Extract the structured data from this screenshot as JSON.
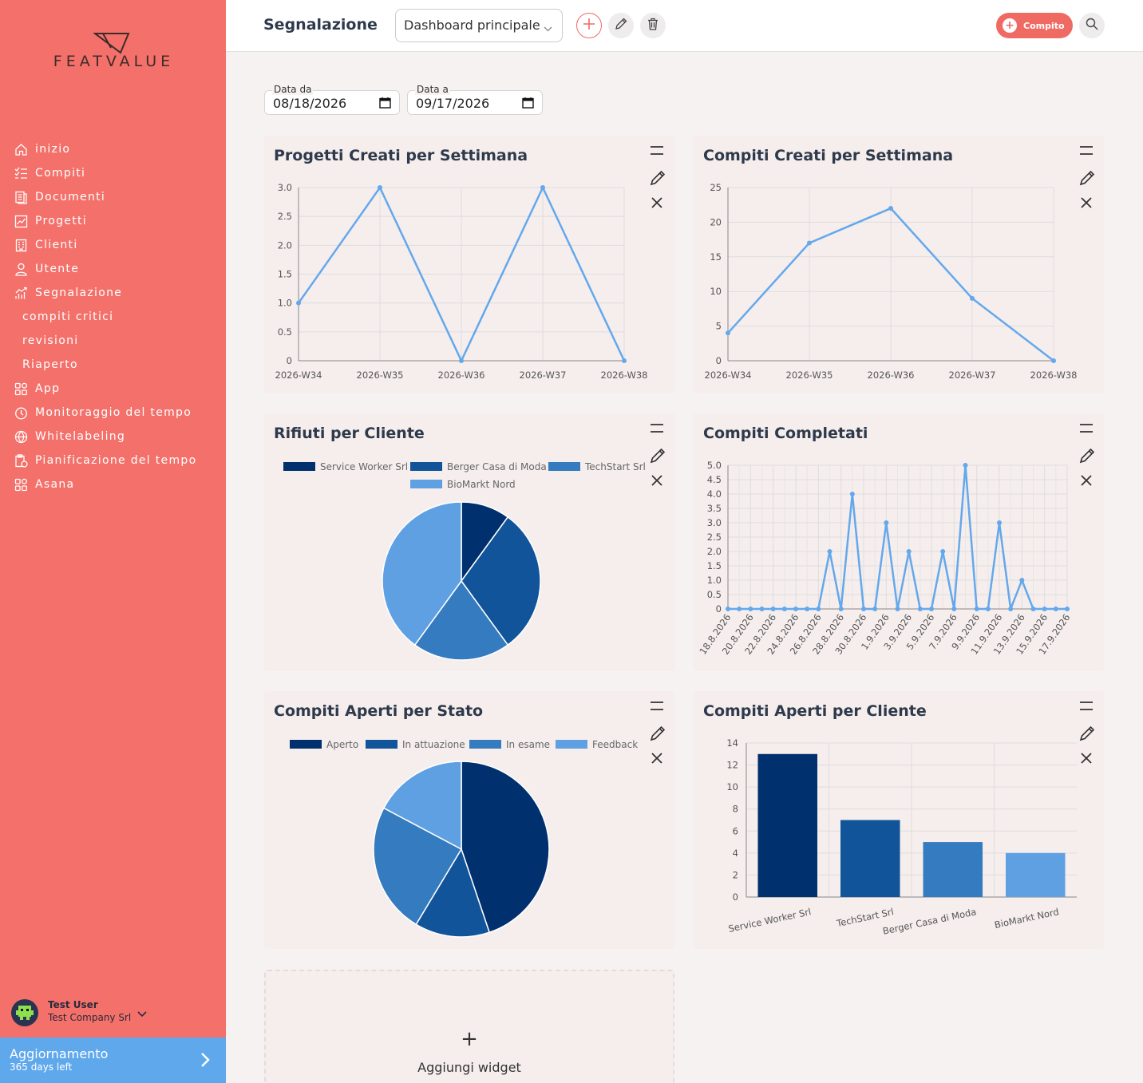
{
  "sidebar": {
    "logo_text": "FEATVALUE",
    "items": [
      {
        "label": "inizio",
        "icon": "home-icon"
      },
      {
        "label": "Compiti",
        "icon": "checklist-icon"
      },
      {
        "label": "Documenti",
        "icon": "document-icon"
      },
      {
        "label": "Progetti",
        "icon": "chart-icon"
      },
      {
        "label": "Clienti",
        "icon": "building-icon"
      },
      {
        "label": "Utente",
        "icon": "user-icon"
      },
      {
        "label": "Segnalazione",
        "icon": "report-icon"
      },
      {
        "label": "compiti critici",
        "icon": ""
      },
      {
        "label": "revisioni",
        "icon": ""
      },
      {
        "label": "Riaperto",
        "icon": ""
      },
      {
        "label": "App",
        "icon": "apps-icon"
      },
      {
        "label": "Monitoraggio del tempo",
        "icon": "timer-icon"
      },
      {
        "label": "Whitelabeling",
        "icon": "globe-icon"
      },
      {
        "label": "Pianificazione del tempo",
        "icon": "clipboard-clock-icon"
      },
      {
        "label": "Asana",
        "icon": "apps-icon"
      }
    ],
    "user": {
      "name": "Test User",
      "company": "Test Company Srl"
    },
    "upgrade": {
      "title": "Aggiornamento",
      "subtitle": "365 days left"
    }
  },
  "header": {
    "title": "Segnalazione",
    "dashboard_select": "Dashboard principale",
    "task_button": "Compito"
  },
  "filters": {
    "from_label": "Data da",
    "from_value": "08/18/2026",
    "to_label": "Data a",
    "to_value": "09/17/2026"
  },
  "add_widget_label": "Aggiungi widget",
  "colors": {
    "accent": "#f3716a",
    "line": "#64a8ec",
    "blue1": "#00306e",
    "blue2": "#12549a",
    "blue3": "#357bbf",
    "blue4": "#5fa0e3"
  },
  "chart_data": [
    {
      "type": "line",
      "title": "Progetti Creati per Settimana",
      "categories": [
        "2026-W34",
        "2026-W35",
        "2026-W36",
        "2026-W37",
        "2026-W38"
      ],
      "values": [
        1,
        3,
        0,
        3,
        0
      ],
      "ylim": [
        0,
        3
      ],
      "yticks": [
        "0",
        "0.5",
        "1.0",
        "1.5",
        "2.0",
        "2.5",
        "3.0"
      ],
      "grid": true
    },
    {
      "type": "line",
      "title": "Compiti Creati per Settimana",
      "categories": [
        "2026-W34",
        "2026-W35",
        "2026-W36",
        "2026-W37",
        "2026-W38"
      ],
      "values": [
        4,
        17,
        22,
        9,
        0
      ],
      "ylim": [
        0,
        25
      ],
      "yticks": [
        "0",
        "5",
        "10",
        "15",
        "20",
        "25"
      ],
      "grid": true
    },
    {
      "type": "pie",
      "title": "Rifiuti per Cliente",
      "series": [
        {
          "name": "Service Worker Srl",
          "value": 1
        },
        {
          "name": "Berger Casa di Moda",
          "value": 3
        },
        {
          "name": "TechStart Srl",
          "value": 2
        },
        {
          "name": "BioMarkt Nord",
          "value": 4
        }
      ],
      "legend": "top"
    },
    {
      "type": "line",
      "title": "Compiti Completati",
      "x": [
        "18.8.2026",
        "19.8.2026",
        "20.8.2026",
        "21.8.2026",
        "22.8.2026",
        "23.8.2026",
        "24.8.2026",
        "25.8.2026",
        "26.8.2026",
        "27.8.2026",
        "28.8.2026",
        "29.8.2026",
        "30.8.2026",
        "31.8.2026",
        "1.9.2026",
        "2.9.2026",
        "3.9.2026",
        "4.9.2026",
        "5.9.2026",
        "6.9.2026",
        "7.9.2026",
        "8.9.2026",
        "9.9.2026",
        "10.9.2026",
        "11.9.2026",
        "12.9.2026",
        "13.9.2026",
        "14.9.2026",
        "15.9.2026",
        "16.9.2026",
        "17.9.2026"
      ],
      "x_tick_labels": [
        "18.8.2026",
        "20.8.2026",
        "22.8.2026",
        "24.8.2026",
        "26.8.2026",
        "28.8.2026",
        "30.8.2026",
        "1.9.2026",
        "3.9.2026",
        "5.9.2026",
        "7.9.2026",
        "9.9.2026",
        "11.9.2026",
        "13.9.2026",
        "15.9.2026",
        "17.9.2026"
      ],
      "values": [
        0,
        0,
        0,
        0,
        0,
        0,
        0,
        0,
        0,
        2,
        0,
        4,
        0,
        0,
        3,
        0,
        2,
        0,
        0,
        2,
        0,
        5,
        0,
        0,
        3,
        0,
        1,
        0,
        0,
        0,
        0
      ],
      "ylim": [
        0,
        5
      ],
      "yticks": [
        "0",
        "0.5",
        "1.0",
        "1.5",
        "2.0",
        "2.5",
        "3.0",
        "3.5",
        "4.0",
        "4.5",
        "5.0"
      ],
      "grid": true
    },
    {
      "type": "pie",
      "title": "Compiti Aperti per Stato",
      "series": [
        {
          "name": "Aperto",
          "value": 13
        },
        {
          "name": "In attuazione",
          "value": 4
        },
        {
          "name": "In esame",
          "value": 7
        },
        {
          "name": "Feedback",
          "value": 5
        }
      ],
      "legend": "top"
    },
    {
      "type": "bar",
      "title": "Compiti Aperti per Cliente",
      "categories": [
        "Service Worker Srl",
        "TechStart Srl",
        "Berger Casa di Moda",
        "BioMarkt Nord"
      ],
      "values": [
        13,
        7,
        5,
        4
      ],
      "ylim": [
        0,
        14
      ],
      "yticks": [
        "0",
        "2",
        "4",
        "6",
        "8",
        "10",
        "12",
        "14"
      ],
      "grid": true
    }
  ]
}
